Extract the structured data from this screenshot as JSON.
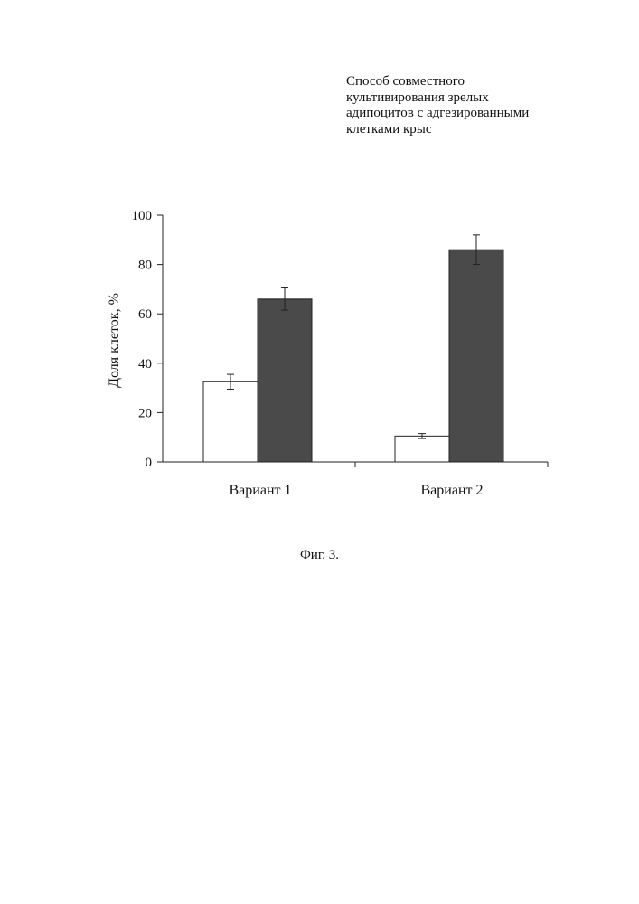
{
  "chart_data": {
    "type": "bar",
    "title": [
      "Способ совместного",
      "культивирования зрелых",
      "адипоцитов с адгезированными",
      "клетками крыс"
    ],
    "xlabel": "",
    "ylabel": "Доля клеток, %",
    "ylim": [
      0,
      100
    ],
    "yticks": [
      "0",
      "20",
      "40",
      "60",
      "80",
      "100"
    ],
    "categories": [
      "Вариант 1",
      "Вариант 2"
    ],
    "series": [
      {
        "fill": "#ffffff",
        "values": [
          32.5,
          10.5
        ],
        "errors": [
          3,
          1
        ]
      },
      {
        "fill": "#4a4a4a",
        "values": [
          66,
          86
        ],
        "errors": [
          4.5,
          6
        ]
      }
    ],
    "grid": false,
    "legend": "none"
  },
  "caption": "Фиг. 3."
}
